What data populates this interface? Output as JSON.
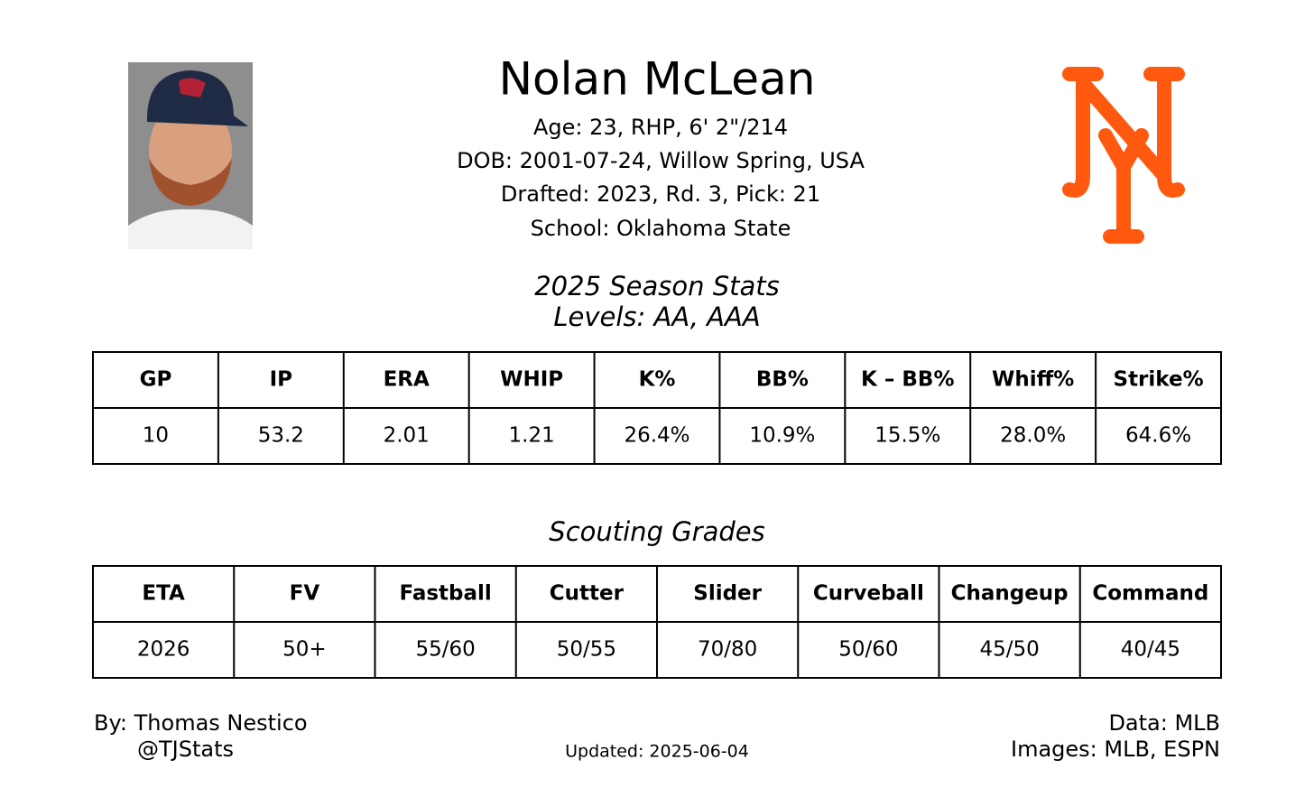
{
  "header": {
    "name": "Nolan McLean",
    "details": [
      "Age: 23, RHP, 6' 2\"/214",
      "DOB: 2001-07-24, Willow Spring, USA",
      "Drafted: 2023, Rd. 3, Pick: 21",
      "School: Oklahoma State"
    ]
  },
  "stats": {
    "title": "2025 Season Stats",
    "subtitle": "Levels: AA, AAA",
    "columns": [
      "GP",
      "IP",
      "ERA",
      "WHIP",
      "K%",
      "BB%",
      "K – BB%",
      "Whiff%",
      "Strike%"
    ],
    "rows": [
      [
        "10",
        "53.2",
        "2.01",
        "1.21",
        "26.4%",
        "10.9%",
        "15.5%",
        "28.0%",
        "64.6%"
      ]
    ]
  },
  "grades": {
    "title": "Scouting Grades",
    "columns": [
      "ETA",
      "FV",
      "Fastball",
      "Cutter",
      "Slider",
      "Curveball",
      "Changeup",
      "Command"
    ],
    "rows": [
      [
        "2026",
        "50+",
        "55/60",
        "50/55",
        "70/80",
        "50/60",
        "45/50",
        "40/45"
      ]
    ]
  },
  "footer": {
    "author": "By: Thomas Nestico",
    "handle": "@TJStats",
    "updated": "Updated: 2025-06-04",
    "data_source": "Data: MLB",
    "images_source": "Images: MLB, ESPN"
  }
}
